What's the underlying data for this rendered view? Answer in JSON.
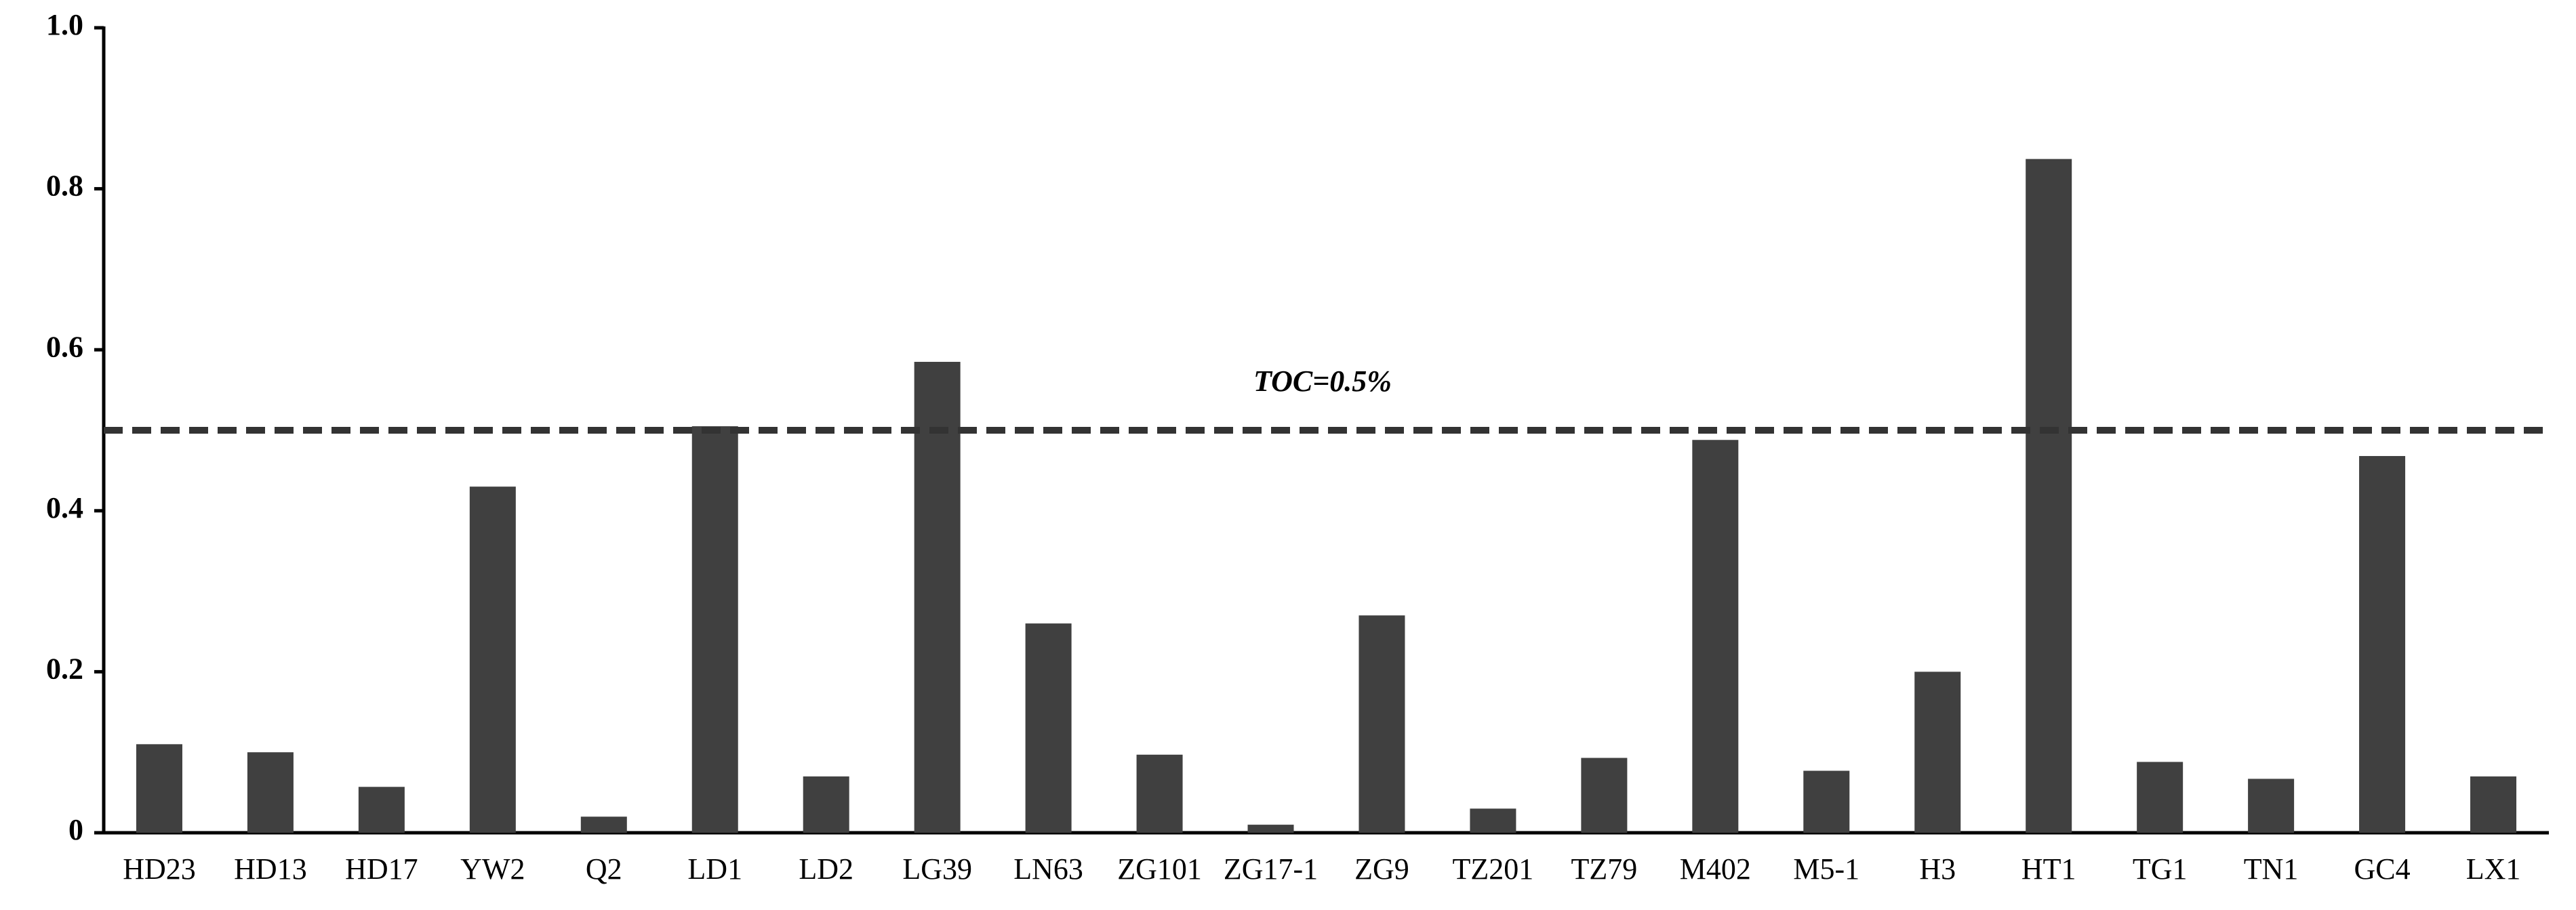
{
  "chart_data": {
    "type": "bar",
    "categories": [
      "HD23",
      "HD13",
      "HD17",
      "YW2",
      "Q2",
      "LD1",
      "LD2",
      "LG39",
      "LN63",
      "ZG101",
      "ZG17-1",
      "ZG9",
      "TZ201",
      "TZ79",
      "M402",
      "M5-1",
      "H3",
      "HT1",
      "TG1",
      "TN1",
      "GC4",
      "LX1"
    ],
    "values": [
      0.11,
      0.1,
      0.057,
      0.43,
      0.02,
      0.505,
      0.07,
      0.585,
      0.26,
      0.097,
      0.01,
      0.27,
      0.03,
      0.093,
      0.488,
      0.077,
      0.2,
      0.837,
      0.088,
      0.067,
      0.468,
      0.07
    ],
    "color": "#404040",
    "ylim": [
      0,
      1.0
    ],
    "yticks": [
      0,
      0.2,
      0.4,
      0.6,
      0.8,
      {
        "value": 1.0,
        "label": "1.0"
      }
    ],
    "grid": false,
    "reference_line": {
      "value": 0.5,
      "label": "TOC=0.5%"
    }
  }
}
